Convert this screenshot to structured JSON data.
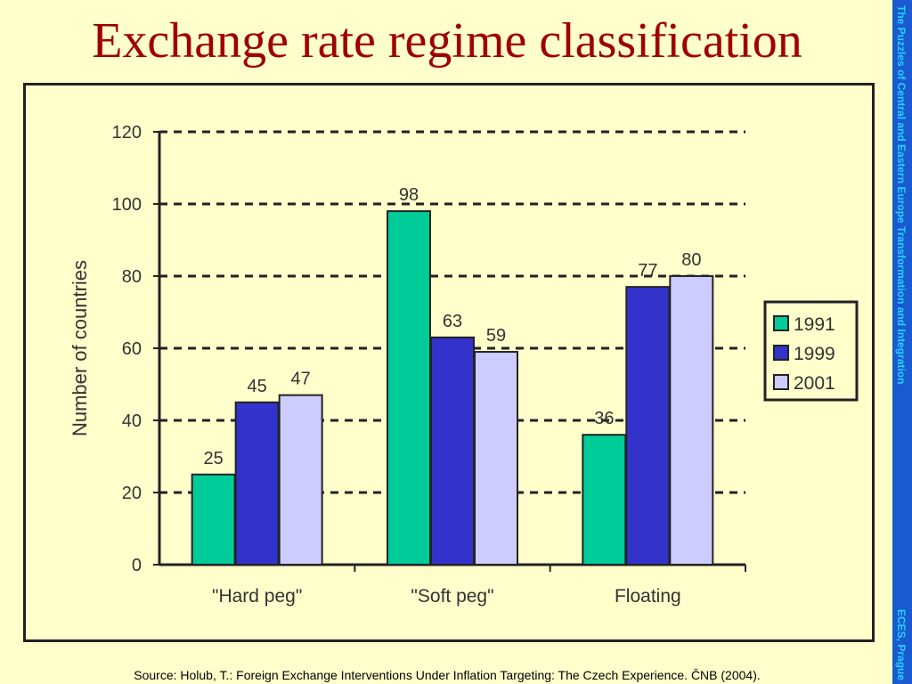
{
  "slide": {
    "title": "Exchange rate regime classification",
    "side_text": "The Puzzles of Central and Eastern Europe Transformation and Integration",
    "side_text_bottom": "ECES, Prague",
    "source": "Source: Holub, T.: Foreign Exchange Interventions Under Inflation Targeting: The Czech Experience. ČNB (2004)."
  },
  "colors": {
    "background": "#ffffcc",
    "title": "#a00000",
    "side_strip": "#1a5ad0",
    "series": [
      "#00cc99",
      "#3333cc",
      "#ccccff"
    ]
  },
  "chart_data": {
    "type": "bar",
    "categories": [
      "\"Hard peg\"",
      "\"Soft peg\"",
      "Floating"
    ],
    "series": [
      {
        "name": "1991",
        "values": [
          25,
          98,
          36
        ]
      },
      {
        "name": "1999",
        "values": [
          45,
          63,
          77
        ]
      },
      {
        "name": "2001",
        "values": [
          47,
          59,
          80
        ]
      }
    ],
    "ylabel": "Number of countries",
    "ylim": [
      0,
      120
    ],
    "yticks": [
      0,
      20,
      40,
      60,
      80,
      100,
      120
    ],
    "grid": "dashed horizontal",
    "legend": "right"
  }
}
